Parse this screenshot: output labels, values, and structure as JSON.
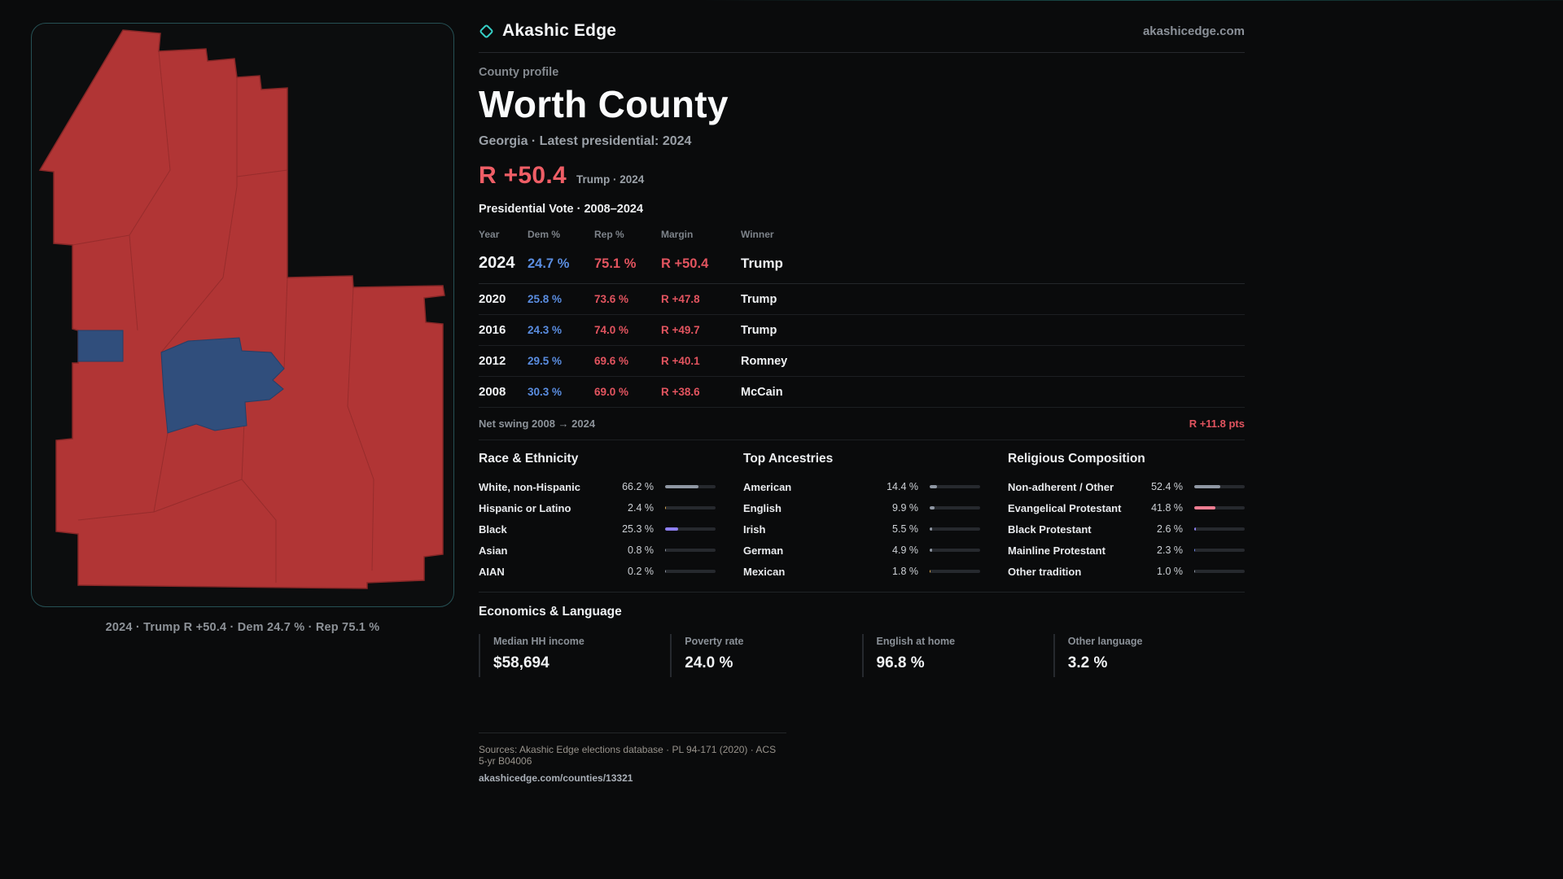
{
  "brand": {
    "name": "Akashic Edge",
    "domain": "akashicedge.com"
  },
  "map": {
    "caption": "2024 · Trump R +50.4 · Dem 24.7 % · Rep 75.1 %"
  },
  "profile": {
    "kicker": "County profile",
    "title": "Worth County",
    "subtitle": "Georgia · Latest presidential: 2024",
    "margin_big": "R +50.4",
    "margin_context": "Trump · 2024"
  },
  "vote_table": {
    "title": "Presidential Vote · 2008–2024",
    "columns": [
      "Year",
      "Dem %",
      "Rep %",
      "Margin",
      "Winner"
    ],
    "rows": [
      {
        "year": "2024",
        "dem": "24.7 %",
        "rep": "75.1 %",
        "margin": "R +50.4",
        "winner": "Trump"
      },
      {
        "year": "2020",
        "dem": "25.8 %",
        "rep": "73.6 %",
        "margin": "R +47.8",
        "winner": "Trump"
      },
      {
        "year": "2016",
        "dem": "24.3 %",
        "rep": "74.0 %",
        "margin": "R +49.7",
        "winner": "Trump"
      },
      {
        "year": "2012",
        "dem": "29.5 %",
        "rep": "69.6 %",
        "margin": "R +40.1",
        "winner": "Romney"
      },
      {
        "year": "2008",
        "dem": "30.3 %",
        "rep": "69.0 %",
        "margin": "R +38.6",
        "winner": "McCain"
      }
    ],
    "net_swing_label": "Net swing 2008 → 2024",
    "net_swing_value": "R +11.8 pts"
  },
  "demographics": {
    "race": {
      "title": "Race & Ethnicity",
      "rows": [
        {
          "label": "White, non-Hispanic",
          "value": "66.2 %",
          "pct": 66.2,
          "color": "#8f97a3"
        },
        {
          "label": "Hispanic or Latino",
          "value": "2.4 %",
          "pct": 2.4,
          "color": "#d9a84e"
        },
        {
          "label": "Black",
          "value": "25.3 %",
          "pct": 25.3,
          "color": "#8d7ff0"
        },
        {
          "label": "Asian",
          "value": "0.8 %",
          "pct": 0.8,
          "color": "#8f97a3"
        },
        {
          "label": "AIAN",
          "value": "0.2 %",
          "pct": 0.2,
          "color": "#8f97a3"
        }
      ]
    },
    "ancestries": {
      "title": "Top Ancestries",
      "rows": [
        {
          "label": "American",
          "value": "14.4 %",
          "pct": 14.4,
          "color": "#8f97a3"
        },
        {
          "label": "English",
          "value": "9.9 %",
          "pct": 9.9,
          "color": "#8f97a3"
        },
        {
          "label": "Irish",
          "value": "5.5 %",
          "pct": 5.5,
          "color": "#8f97a3"
        },
        {
          "label": "German",
          "value": "4.9 %",
          "pct": 4.9,
          "color": "#8f97a3"
        },
        {
          "label": "Mexican",
          "value": "1.8 %",
          "pct": 1.8,
          "color": "#d9a84e"
        }
      ]
    },
    "religion": {
      "title": "Religious Composition",
      "rows": [
        {
          "label": "Non-adherent / Other",
          "value": "52.4 %",
          "pct": 52.4,
          "color": "#8f97a3"
        },
        {
          "label": "Evangelical Protestant",
          "value": "41.8 %",
          "pct": 41.8,
          "color": "#ef7d92"
        },
        {
          "label": "Black Protestant",
          "value": "2.6 %",
          "pct": 2.6,
          "color": "#8d7ff0"
        },
        {
          "label": "Mainline Protestant",
          "value": "2.3 %",
          "pct": 2.3,
          "color": "#6f86e8"
        },
        {
          "label": "Other tradition",
          "value": "1.0 %",
          "pct": 1.0,
          "color": "#8f97a3"
        }
      ]
    }
  },
  "economics": {
    "title": "Economics & Language",
    "stats": [
      {
        "label": "Median HH income",
        "value": "$58,694"
      },
      {
        "label": "Poverty rate",
        "value": "24.0 %"
      },
      {
        "label": "English at home",
        "value": "96.8 %"
      },
      {
        "label": "Other language",
        "value": "3.2 %"
      }
    ]
  },
  "footer": {
    "sources": "Sources: Akashic Edge elections database · PL 94-171 (2020) · ACS 5-yr B04006",
    "permalink": "akashicedge.com/counties/13321"
  },
  "colors": {
    "dem": "#5a8de0",
    "rep": "#e2545f",
    "accent": "#36cfc6",
    "map_red": "#b13535",
    "map_blue": "#304e7c"
  }
}
